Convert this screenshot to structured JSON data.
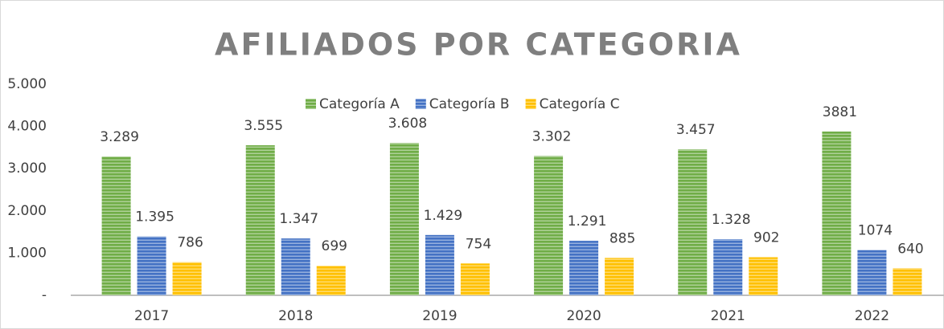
{
  "chart_data": {
    "type": "bar",
    "title": "AFILIADOS POR CATEGORIA",
    "categories": [
      "2017",
      "2018",
      "2019",
      "2020",
      "2021",
      "2022"
    ],
    "series": [
      {
        "name": "Categoría A",
        "color": "#70ad47",
        "values": [
          3289,
          3555,
          3608,
          3302,
          3457,
          3881
        ],
        "value_labels": [
          "3.289",
          "3.555",
          "3.608",
          "3.302",
          "3.457",
          "3881"
        ]
      },
      {
        "name": "Categoría B",
        "color": "#4472c4",
        "values": [
          1395,
          1347,
          1429,
          1291,
          1328,
          1074
        ],
        "value_labels": [
          "1.395",
          "1.347",
          "1.429",
          "1.291",
          "1.328",
          "1074"
        ]
      },
      {
        "name": "Categoría C",
        "color": "#ffc000",
        "values": [
          786,
          699,
          754,
          885,
          902,
          640
        ],
        "value_labels": [
          "786",
          "699",
          "754",
          "885",
          "902",
          "640"
        ]
      }
    ],
    "ylim": [
      0,
      5000
    ],
    "yticks": [
      {
        "value": 0,
        "label": "-"
      },
      {
        "value": 1000,
        "label": "1.000"
      },
      {
        "value": 2000,
        "label": "2.000"
      },
      {
        "value": 3000,
        "label": "3.000"
      },
      {
        "value": 4000,
        "label": "4.000"
      },
      {
        "value": 5000,
        "label": "5.000"
      }
    ],
    "grid": false,
    "legend": "top"
  }
}
